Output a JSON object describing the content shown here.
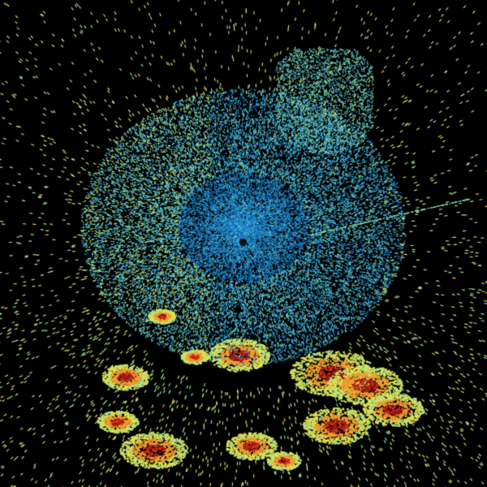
{
  "radar": {
    "background": "#000000",
    "site_marker_color": "#111111",
    "palette": {
      "dark_blue": "#1a5fa8",
      "blue": "#1f8fd0",
      "cyan": "#5cc3d8",
      "teal_green": "#7fd6a8",
      "light_green": "#a8e08c",
      "yellow": "#e8e04a",
      "orange": "#f0a030",
      "red": "#d83020",
      "dark_red": "#a01810"
    }
  }
}
